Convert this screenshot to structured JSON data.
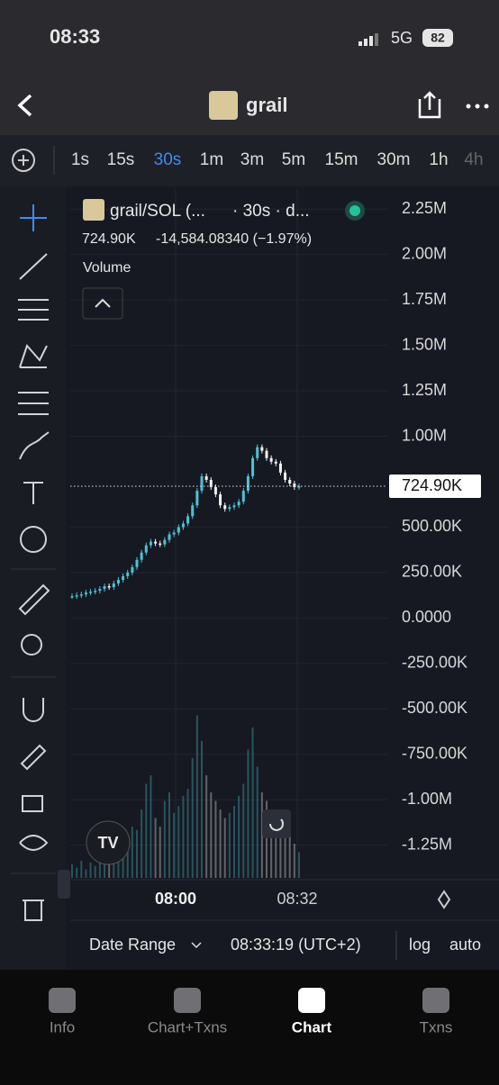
{
  "status_bar": {
    "time": "08:33",
    "network": "5G",
    "battery": "82"
  },
  "header": {
    "title": "grail"
  },
  "timeframes": {
    "items": [
      "1s",
      "15s",
      "30s",
      "1m",
      "3m",
      "5m",
      "15m",
      "30m",
      "1h",
      "4h"
    ],
    "selected_index": 2
  },
  "legend": {
    "pair": "grail/SOL (...",
    "details": "· 30s · d...",
    "change": "-14,584.08340 (−1.97%)",
    "volume": "Volume"
  },
  "chart": {
    "type": "candlestick",
    "ylim": [
      -1430000,
      2360000
    ],
    "yticks": [
      {
        "value": 2250000,
        "label": "2.25M"
      },
      {
        "value": 2000000,
        "label": "2.00M"
      },
      {
        "value": 1750000,
        "label": "1.75M"
      },
      {
        "value": 1500000,
        "label": "1.50M"
      },
      {
        "value": 1250000,
        "label": "1.25M"
      },
      {
        "value": 1000000,
        "label": "1.00M"
      },
      {
        "value": 500000,
        "label": "500.00K"
      },
      {
        "value": 250000,
        "label": "250.00K"
      },
      {
        "value": 0,
        "label": "0.0000"
      },
      {
        "value": -250000,
        "label": "-250.00K"
      },
      {
        "value": -500000,
        "label": "-500.00K"
      },
      {
        "value": -750000,
        "label": "-750.00K"
      },
      {
        "value": -1000000,
        "label": "-1.00M"
      },
      {
        "value": -1250000,
        "label": "-1.25M"
      }
    ],
    "closes": [
      120000,
      125000,
      130000,
      140000,
      145000,
      150000,
      160000,
      175000,
      170000,
      190000,
      210000,
      230000,
      250000,
      280000,
      320000,
      360000,
      400000,
      420000,
      410000,
      405000,
      430000,
      460000,
      470000,
      500000,
      520000,
      560000,
      620000,
      700000,
      780000,
      760000,
      720000,
      680000,
      620000,
      600000,
      610000,
      620000,
      640000,
      700000,
      780000,
      880000,
      940000,
      920000,
      880000,
      860000,
      850000,
      800000,
      760000,
      740000,
      720000,
      724900
    ],
    "volume": [
      8,
      6,
      10,
      5,
      9,
      7,
      12,
      15,
      10,
      18,
      14,
      20,
      25,
      30,
      28,
      40,
      55,
      60,
      35,
      30,
      45,
      50,
      38,
      42,
      48,
      52,
      70,
      95,
      80,
      60,
      50,
      45,
      40,
      35,
      38,
      42,
      48,
      55,
      75,
      88,
      65,
      50,
      45,
      40,
      38,
      35,
      30,
      25,
      20,
      15
    ],
    "up_color": "#4cc2d6",
    "down_color": "#f2f2f2",
    "last": {
      "value": 724900,
      "label": "724.90K"
    },
    "xticks": [
      "08:00",
      "08:32"
    ]
  },
  "footer": {
    "date_range": "Date Range",
    "time": "08:33:19 (UTC+2)",
    "log": "log",
    "auto": "auto"
  },
  "tabs": [
    "Info",
    "Chart+Txns",
    "Chart",
    "Txns"
  ],
  "active_tab": 2
}
